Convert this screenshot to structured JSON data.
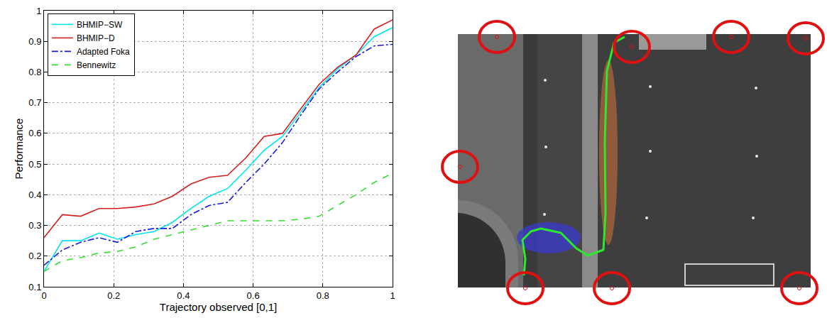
{
  "chart_data": {
    "type": "line",
    "x_label": "Trajectory observed [0,1]",
    "y_label": "Performance",
    "x": [
      0,
      0.0526,
      0.1053,
      0.1579,
      0.2105,
      0.2632,
      0.3158,
      0.3684,
      0.4211,
      0.4737,
      0.5263,
      0.5789,
      0.6316,
      0.6842,
      0.7368,
      0.7895,
      0.8421,
      0.8947,
      0.9474,
      1
    ],
    "series": [
      {
        "name": "BHMIP−SW",
        "color": "#00e5ee",
        "line_style": "solid",
        "values": [
          0.15,
          0.25,
          0.25,
          0.275,
          0.255,
          0.27,
          0.28,
          0.31,
          0.355,
          0.395,
          0.42,
          0.48,
          0.545,
          0.59,
          0.67,
          0.75,
          0.81,
          0.855,
          0.915,
          0.945
        ]
      },
      {
        "name": "BHMIP−D",
        "color": "#d62020",
        "line_style": "solid",
        "values": [
          0.26,
          0.335,
          0.33,
          0.355,
          0.355,
          0.36,
          0.37,
          0.395,
          0.435,
          0.457,
          0.463,
          0.52,
          0.59,
          0.6,
          0.68,
          0.76,
          0.815,
          0.855,
          0.94,
          0.97
        ]
      },
      {
        "name": "Adapted Foka",
        "color": "#1a1adb",
        "line_style": "dashdot",
        "values": [
          0.17,
          0.22,
          0.245,
          0.26,
          0.245,
          0.28,
          0.29,
          0.29,
          0.335,
          0.365,
          0.375,
          0.44,
          0.5,
          0.57,
          0.66,
          0.745,
          0.8,
          0.85,
          0.885,
          0.89
        ]
      },
      {
        "name": "Bennewitz",
        "color": "#33dd33",
        "line_style": "dash",
        "values": [
          0.15,
          0.185,
          0.195,
          0.21,
          0.215,
          0.23,
          0.255,
          0.27,
          0.285,
          0.3,
          0.315,
          0.315,
          0.315,
          0.315,
          0.32,
          0.33,
          0.365,
          0.4,
          0.44,
          0.47
        ]
      }
    ],
    "xlim": [
      0,
      1
    ],
    "ylim": [
      0.1,
      1
    ],
    "xticks": [
      0,
      0.2,
      0.4,
      0.6,
      0.8,
      1
    ],
    "yticks": [
      0.1,
      0.2,
      0.3,
      0.4,
      0.5,
      0.6,
      0.7,
      0.8,
      0.9,
      1
    ],
    "grid": true,
    "legend": "upper left"
  }
}
